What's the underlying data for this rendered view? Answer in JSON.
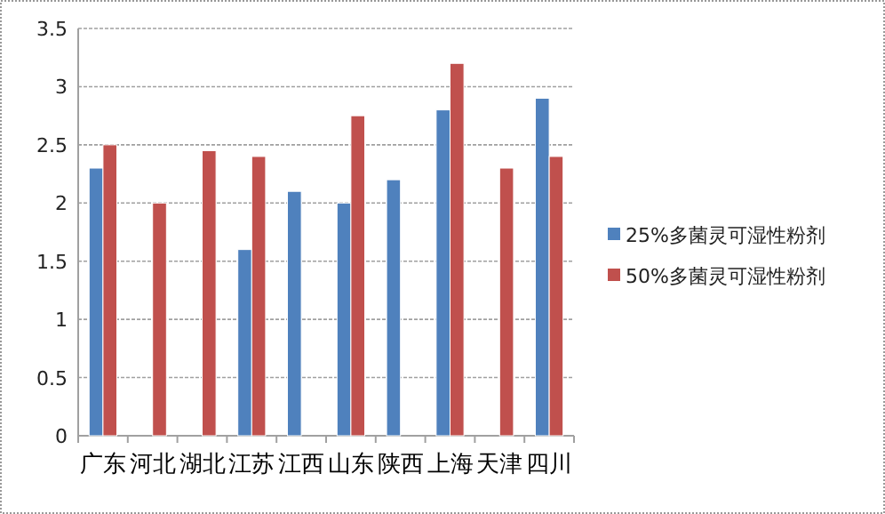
{
  "chart_data": {
    "type": "bar",
    "categories": [
      "广东",
      "河北",
      "湖北",
      "江苏",
      "江西",
      "山东",
      "陕西",
      "上海",
      "天津",
      "四川"
    ],
    "series": [
      {
        "name": "25%多菌灵可湿性粉剂",
        "color": "#4f81bd",
        "values": [
          2.3,
          null,
          null,
          1.6,
          2.1,
          2.0,
          2.2,
          2.8,
          null,
          2.9
        ]
      },
      {
        "name": "50%多菌灵可湿性粉剂",
        "color": "#c0504d",
        "values": [
          2.5,
          2.0,
          2.45,
          2.4,
          null,
          2.75,
          null,
          3.2,
          2.3,
          2.4
        ]
      }
    ],
    "ylim": [
      0,
      3.5
    ],
    "yticks": [
      0,
      0.5,
      1,
      1.5,
      2,
      2.5,
      3,
      3.5
    ],
    "grid": "y",
    "legend": "right"
  }
}
